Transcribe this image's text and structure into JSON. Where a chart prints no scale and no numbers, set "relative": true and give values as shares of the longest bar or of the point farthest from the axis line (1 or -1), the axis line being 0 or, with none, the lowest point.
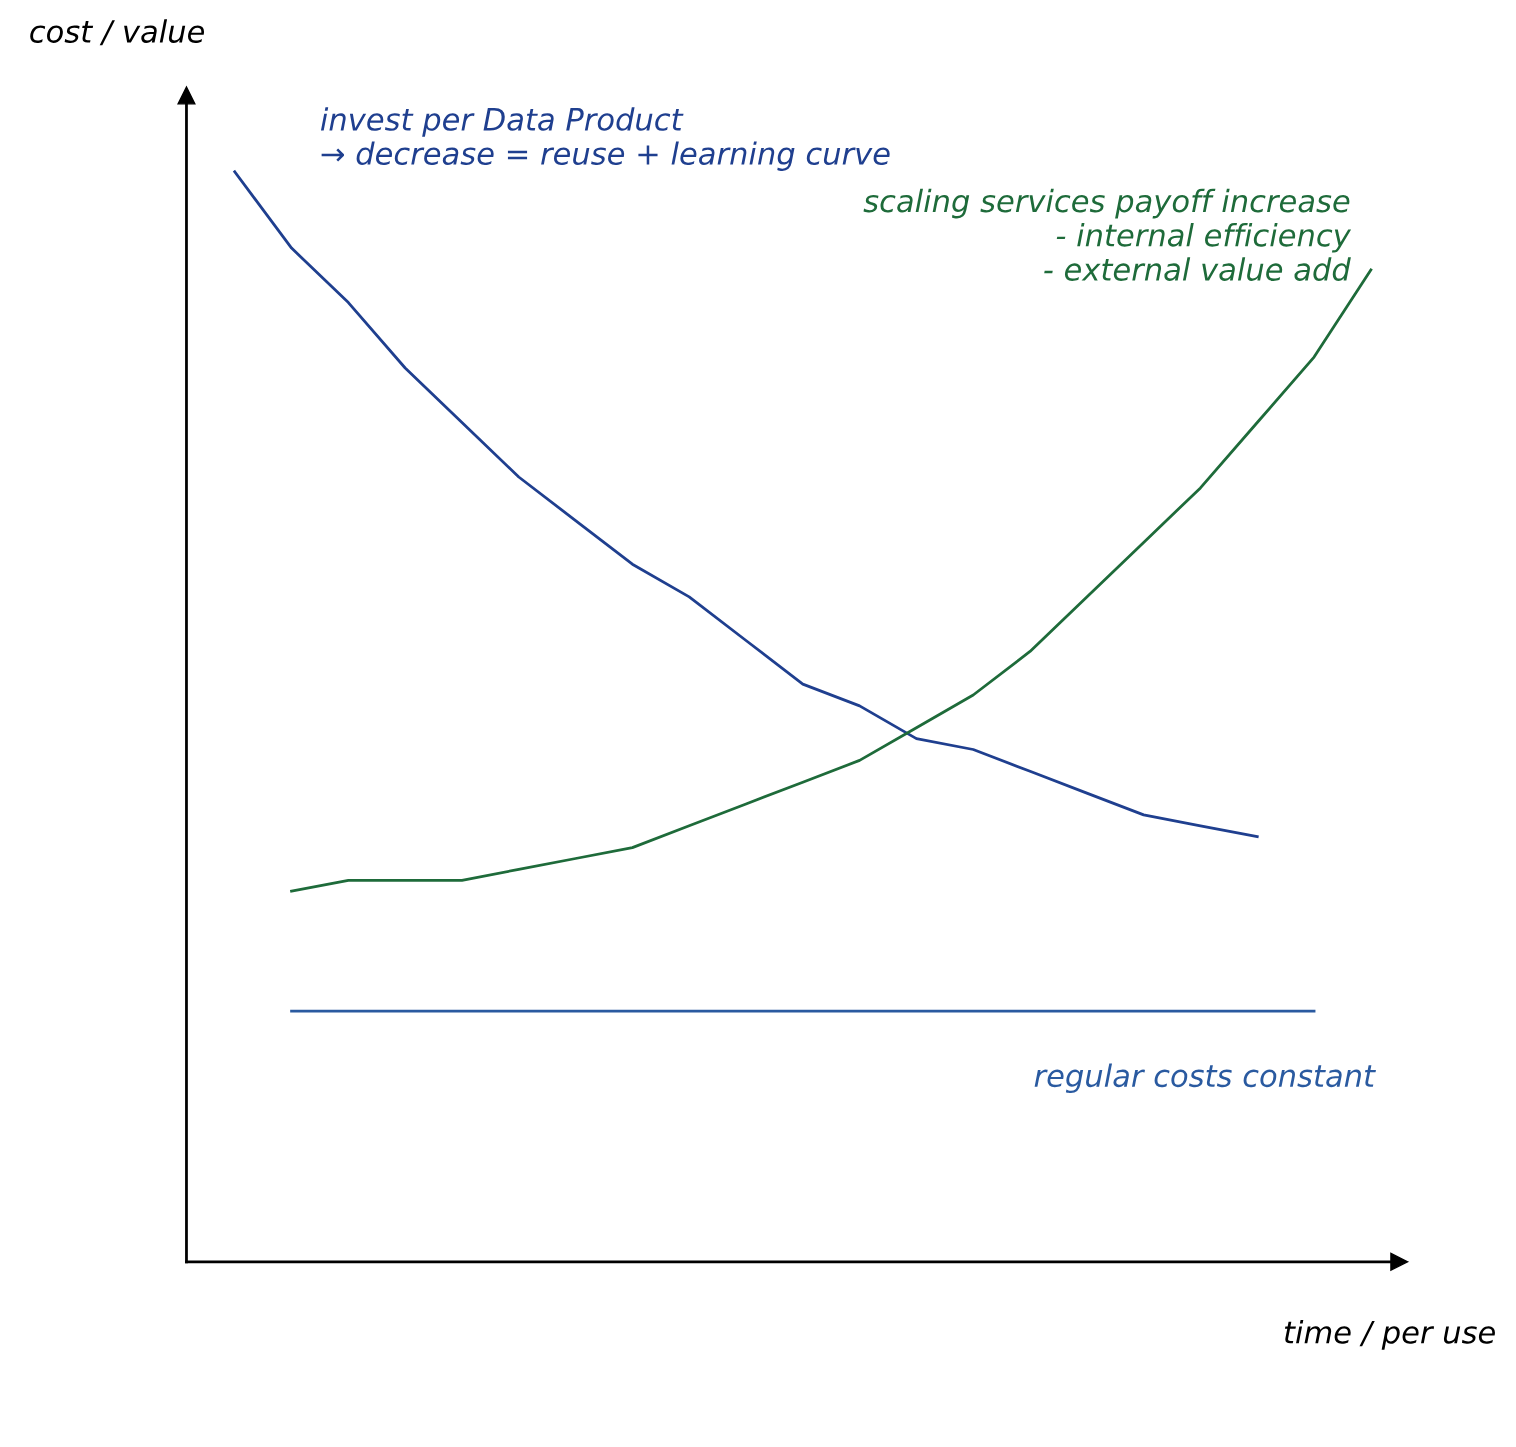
{
  "chart_data": {
    "type": "line",
    "relative": true,
    "xlabel": "time / per use",
    "ylabel": "cost / value",
    "categories": [
      null,
      null,
      null,
      null,
      null,
      null,
      null,
      null,
      null,
      null,
      null,
      null,
      null,
      null,
      null,
      null,
      null,
      null,
      null,
      null,
      null
    ],
    "series": [
      {
        "color": "#1f3f8f",
        "values": [
          1.0,
          0.93,
          0.88,
          0.82,
          0.77,
          0.72,
          0.68,
          0.64,
          0.61,
          0.57,
          0.53,
          0.51,
          0.48,
          0.47,
          0.45,
          0.43,
          0.41,
          0.4,
          0.39,
          null,
          null
        ]
      },
      {
        "color": "#1e6b3a",
        "values": [
          null,
          0.34,
          0.35,
          0.35,
          0.35,
          0.36,
          0.37,
          0.38,
          0.4,
          0.42,
          0.44,
          0.46,
          0.49,
          0.52,
          0.56,
          0.61,
          0.66,
          0.71,
          0.77,
          0.83,
          0.91
        ]
      },
      {
        "color": "#2a5aa0",
        "values": [
          null,
          0.23,
          0.23,
          0.23,
          0.23,
          0.23,
          0.23,
          0.23,
          0.23,
          0.23,
          0.23,
          0.23,
          0.23,
          0.23,
          0.23,
          0.23,
          0.23,
          0.23,
          0.23,
          0.23,
          null
        ]
      }
    ],
    "annotations": [
      "invest per Data Product\n→ decrease = reuse + learning curve",
      "scaling services payoff increase\n- internal efficiency\n- external value add",
      "regular costs constant"
    ],
    "grid": false,
    "legend": false,
    "marker": "none",
    "line_style": "solid"
  }
}
